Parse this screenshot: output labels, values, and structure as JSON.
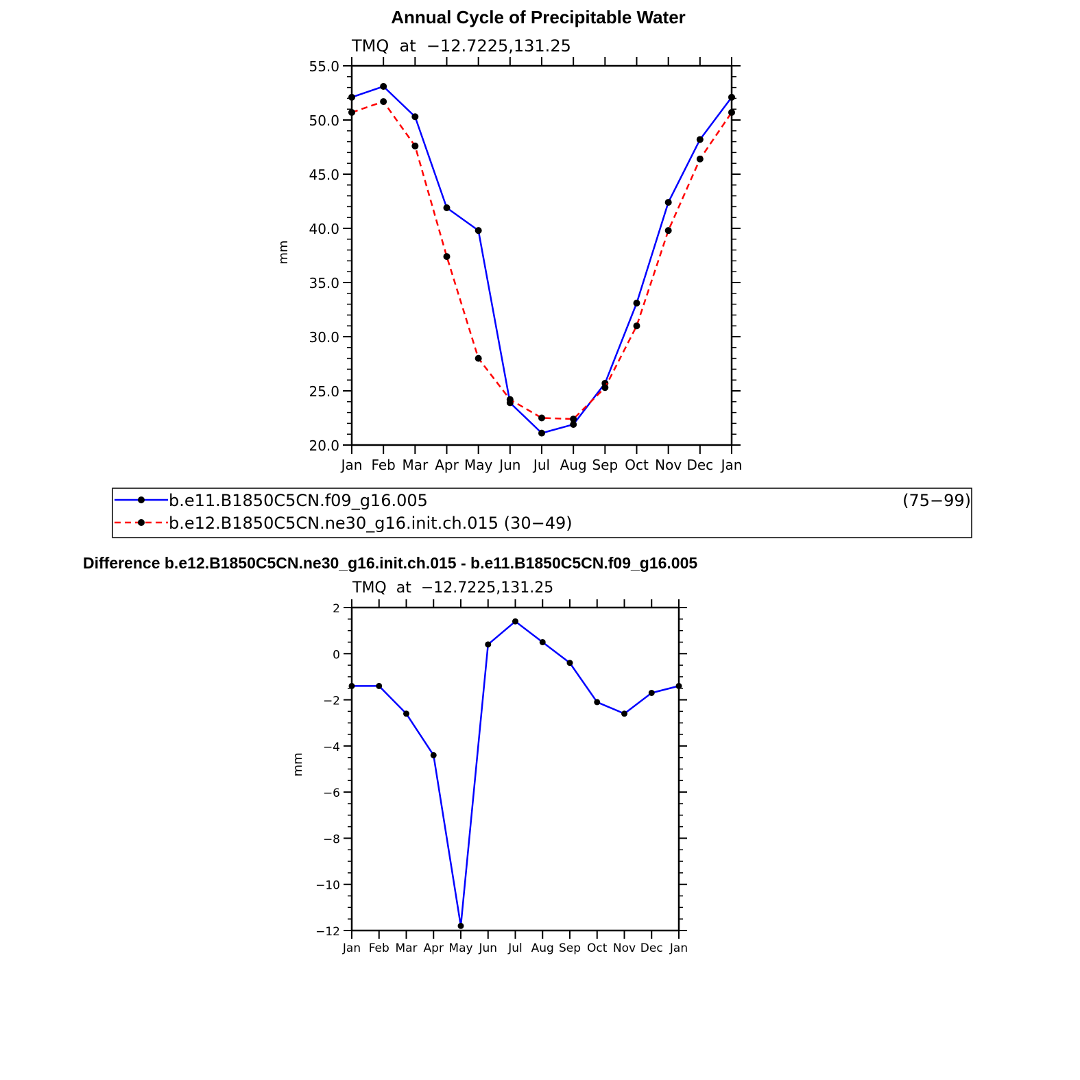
{
  "chart_data": [
    {
      "type": "line",
      "title": "Annual Cycle of Precipitable Water",
      "subtitle": "TMQ  at  −12.7225,131.25",
      "xlabel": "",
      "ylabel": "mm",
      "categories": [
        "Jan",
        "Feb",
        "Mar",
        "Apr",
        "May",
        "Jun",
        "Jul",
        "Aug",
        "Sep",
        "Oct",
        "Nov",
        "Dec",
        "Jan"
      ],
      "ylim": [
        20,
        55
      ],
      "y_tick_labels": [
        "20.0",
        "25.0",
        "30.0",
        "35.0",
        "40.0",
        "45.0",
        "50.0",
        "55.0"
      ],
      "y_ticks": [
        20,
        25,
        30,
        35,
        40,
        45,
        50,
        55
      ],
      "series": [
        {
          "name": "b.e11.B1850C5CN.f09_g16.005",
          "years": "(75−99)",
          "color": "#0000ff",
          "dash": "solid",
          "values": [
            52.1,
            53.1,
            50.3,
            41.9,
            39.8,
            23.9,
            21.1,
            21.9,
            25.7,
            33.1,
            42.4,
            48.2,
            52.1
          ]
        },
        {
          "name": "b.e12.B1850C5CN.ne30_g16.init.ch.015",
          "years": "(30−49)",
          "color": "#ff0000",
          "dash": "dashed",
          "values": [
            50.7,
            51.7,
            47.6,
            37.4,
            28.0,
            24.2,
            22.5,
            22.4,
            25.3,
            31.0,
            39.8,
            46.4,
            50.7
          ]
        }
      ],
      "legend": [
        "b.e11.B1850C5CN.f09_g16.005",
        "b.e12.B1850C5CN.ne30_g16.init.ch.015 (30−49)"
      ],
      "legend_right_text": "(75−99)"
    },
    {
      "type": "line",
      "title": "Difference b.e12.B1850C5CN.ne30_g16.init.ch.015 - b.e11.B1850C5CN.f09_g16.005",
      "subtitle": "TMQ  at  −12.7225,131.25",
      "xlabel": "",
      "ylabel": "mm",
      "categories": [
        "Jan",
        "Feb",
        "Mar",
        "Apr",
        "May",
        "Jun",
        "Jul",
        "Aug",
        "Sep",
        "Oct",
        "Nov",
        "Dec",
        "Jan"
      ],
      "ylim": [
        -12,
        2
      ],
      "y_ticks": [
        -12,
        -10,
        -8,
        -6,
        -4,
        -2,
        0,
        2
      ],
      "y_tick_labels": [
        "−12",
        "−10",
        "−8",
        "−6",
        "−4",
        "−2",
        "0",
        "2"
      ],
      "series": [
        {
          "name": "difference",
          "color": "#0000ff",
          "dash": "solid",
          "values": [
            -1.4,
            -1.4,
            -2.6,
            -4.4,
            -11.8,
            0.4,
            1.4,
            0.5,
            -0.4,
            -2.1,
            -2.6,
            -1.7,
            -1.4
          ]
        }
      ]
    }
  ]
}
